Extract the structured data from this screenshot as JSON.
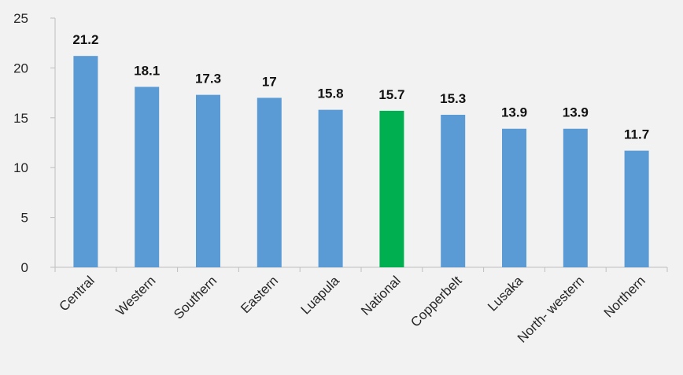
{
  "chart_data": {
    "type": "bar",
    "title": "",
    "xlabel": "",
    "ylabel": "",
    "categories": [
      "Central",
      "Western",
      "Southern",
      "Eastern",
      "Luapula",
      "National",
      "Copperbelt",
      "Lusaka",
      "North- western",
      "Northern"
    ],
    "values": [
      21.2,
      18.1,
      17.3,
      17,
      15.8,
      15.7,
      15.3,
      13.9,
      13.9,
      11.7
    ],
    "data_labels": [
      "21.2",
      "18.1",
      "17.3",
      "17",
      "15.8",
      "15.7",
      "15.3",
      "13.9",
      "13.9",
      "11.7"
    ],
    "ylim": [
      0,
      25
    ],
    "yticks": [
      "0",
      "5",
      "10",
      "15",
      "20",
      "25"
    ],
    "grid": false,
    "legend": "none",
    "colors": {
      "default_bar": "#5b9bd5",
      "highlight_bar": "#00b050",
      "highlight_category": "National",
      "background": "#f2f2f2",
      "axis": "#bfbfbf"
    }
  }
}
